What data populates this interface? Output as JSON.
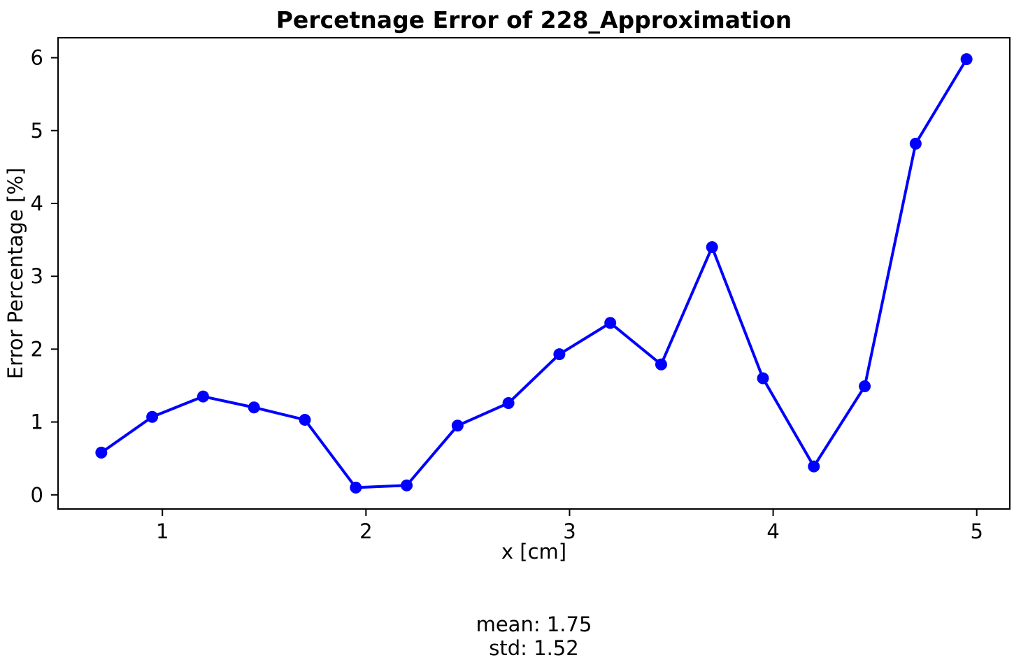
{
  "chart_data": {
    "type": "line",
    "title": "Percetnage Error of 228_Approximation",
    "xlabel": "x [cm]",
    "ylabel": "Error Percentage [%]",
    "line_color": "#0000ff",
    "marker": "circle",
    "grid": false,
    "legend": null,
    "x": [
      0.7,
      0.95,
      1.2,
      1.45,
      1.7,
      1.95,
      2.2,
      2.45,
      2.7,
      2.95,
      3.2,
      3.45,
      3.7,
      3.95,
      4.2,
      4.45,
      4.7,
      4.95
    ],
    "y": [
      0.58,
      1.07,
      1.35,
      1.2,
      1.03,
      0.1,
      0.13,
      0.95,
      1.26,
      1.93,
      2.36,
      1.79,
      3.4,
      1.6,
      0.39,
      1.49,
      4.82,
      5.98
    ],
    "xticks": [
      1,
      2,
      3,
      4,
      5
    ],
    "yticks": [
      0,
      1,
      2,
      3,
      4,
      5,
      6
    ],
    "xlim": [
      0.4875,
      5.1625
    ],
    "ylim": [
      -0.194,
      6.274
    ],
    "stats": {
      "mean": 1.75,
      "std": 1.52
    },
    "annotations": [
      "mean: 1.75",
      "std: 1.52"
    ]
  }
}
